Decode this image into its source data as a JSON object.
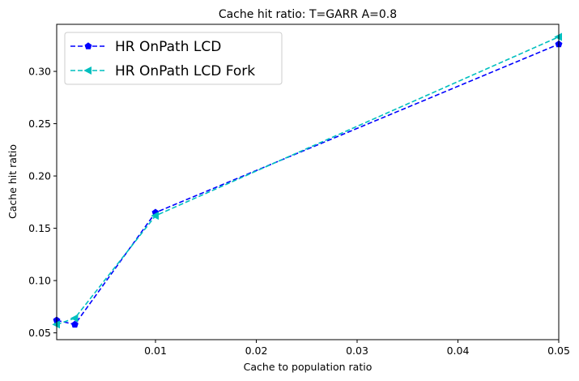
{
  "chart_data": {
    "type": "line",
    "title": "Cache hit ratio: T=GARR A=0.8",
    "xlabel": "Cache to population ratio",
    "ylabel": "Cache hit ratio",
    "xlim": [
      0.0002,
      0.05
    ],
    "ylim": [
      0.0435,
      0.345
    ],
    "xticks": [
      0.01,
      0.02,
      0.03,
      0.04,
      0.05
    ],
    "xtick_labels": [
      "0.01",
      "0.02",
      "0.03",
      "0.04",
      "0.05"
    ],
    "yticks": [
      0.05,
      0.1,
      0.15,
      0.2,
      0.25,
      0.3
    ],
    "ytick_labels": [
      "0.05",
      "0.10",
      "0.15",
      "0.20",
      "0.25",
      "0.30"
    ],
    "grid": false,
    "legend_position": "top-left",
    "series": [
      {
        "name": "HR OnPath LCD",
        "color": "#0000ff",
        "marker": "pentagon",
        "linestyle": "dashed",
        "x": [
          0.0002,
          0.002,
          0.01,
          0.05
        ],
        "y": [
          0.062,
          0.058,
          0.165,
          0.326
        ]
      },
      {
        "name": "HR OnPath LCD Fork",
        "color": "#00bfbf",
        "marker": "triangle-left",
        "linestyle": "dashed",
        "x": [
          0.0002,
          0.002,
          0.01,
          0.05
        ],
        "y": [
          0.058,
          0.064,
          0.162,
          0.333
        ]
      }
    ]
  }
}
